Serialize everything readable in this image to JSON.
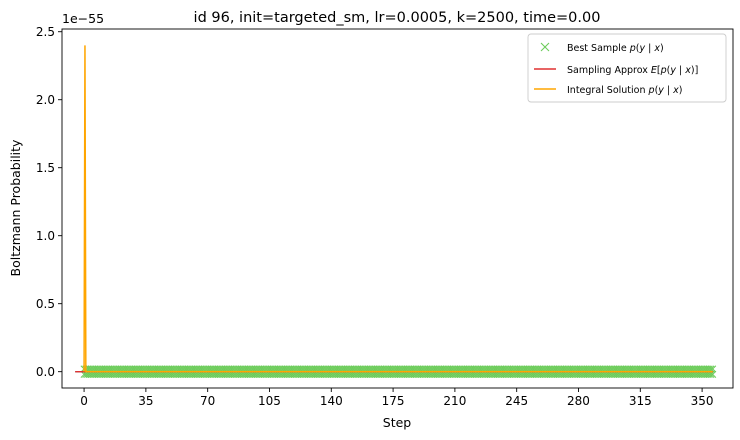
{
  "chart_data": {
    "type": "line",
    "title": "id 96, init=targeted_sm, lr=0.0005, k=2500, time=0.00",
    "xlabel": "Step",
    "ylabel": "Boltzmann Probability",
    "y_offset_label": "1e−55",
    "xlim": [
      -12.5,
      367.5
    ],
    "ylim": [
      -0.12,
      2.52
    ],
    "xticks": [
      0,
      35,
      70,
      105,
      140,
      175,
      210,
      245,
      280,
      315,
      350
    ],
    "yticks": [
      0.0,
      0.5,
      1.0,
      1.5,
      2.0,
      2.5
    ],
    "ytick_labels": [
      "0.0",
      "0.5",
      "1.0",
      "1.5",
      "2.0",
      "2.5"
    ],
    "grid": false,
    "legend_position": "top-right",
    "x_range": [
      0,
      356
    ],
    "series": [
      {
        "name": "Best Sample p(y | x)",
        "kind": "markers",
        "marker": "x",
        "color": "#6ccc5a",
        "x_start": 0,
        "x_end": 356,
        "values_upper": 0.02,
        "values_lower": -0.02
      },
      {
        "name": "Sampling Approx E[p(y | x)]",
        "kind": "line",
        "color": "#e03131",
        "x": [
          -5,
          356
        ],
        "y": [
          0.0,
          0.0
        ]
      },
      {
        "name": "Integral Solution p(y | x)",
        "kind": "line",
        "color": "#ffa500",
        "x": [
          0,
          0.5,
          1,
          356
        ],
        "y": [
          0.0,
          2.4,
          0.0,
          0.0
        ]
      }
    ],
    "extra_line": {
      "color": "#404040",
      "x": [
        -5,
        356
      ],
      "y": [
        0.0,
        0.0
      ]
    }
  }
}
